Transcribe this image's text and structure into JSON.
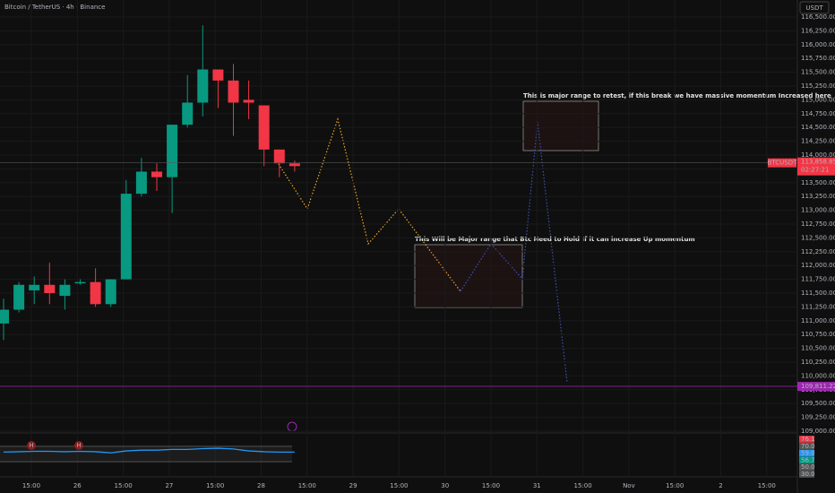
{
  "chart_data": {
    "type": "candlestick",
    "title": "Bitcoin / TetherUS · 4h · Binance",
    "currency": "USDT",
    "colors": {
      "up": "#089981",
      "down": "#f23645"
    },
    "ylim": [
      109000,
      116500
    ],
    "yticks": [
      {
        "value": 109000,
        "label": "109,000.00"
      },
      {
        "value": 109250,
        "label": "109,250.00"
      },
      {
        "value": 109500,
        "label": "109,500.00"
      },
      {
        "value": 109750,
        "label": "109,750.00"
      },
      {
        "value": 110000,
        "label": "110,000.00"
      },
      {
        "value": 110250,
        "label": "110,250.00"
      },
      {
        "value": 110500,
        "label": "110,500.00"
      },
      {
        "value": 110750,
        "label": "110,750.00"
      },
      {
        "value": 111000,
        "label": "111,000.00"
      },
      {
        "value": 111250,
        "label": "111,250.00"
      },
      {
        "value": 111500,
        "label": "111,500.00"
      },
      {
        "value": 111750,
        "label": "111,750.00"
      },
      {
        "value": 112000,
        "label": "112,000.00"
      },
      {
        "value": 112250,
        "label": "112,250.00"
      },
      {
        "value": 112500,
        "label": "112,500.00"
      },
      {
        "value": 112750,
        "label": "112,750.00"
      },
      {
        "value": 113000,
        "label": "113,000.00"
      },
      {
        "value": 113250,
        "label": "113,250.00"
      },
      {
        "value": 113500,
        "label": "113,500.00"
      },
      {
        "value": 113750,
        "label": "113,750.00"
      },
      {
        "value": 114000,
        "label": "114,000.00"
      },
      {
        "value": 114250,
        "label": "114,250.00"
      },
      {
        "value": 114500,
        "label": "114,500.00"
      },
      {
        "value": 114750,
        "label": "114,750.00"
      },
      {
        "value": 115000,
        "label": "115,000.00"
      },
      {
        "value": 115250,
        "label": "115,250.00"
      },
      {
        "value": 115500,
        "label": "115,500.00"
      },
      {
        "value": 115750,
        "label": "115,750.00"
      },
      {
        "value": 116000,
        "label": "116,000.00"
      },
      {
        "value": 116250,
        "label": "116,250.00"
      },
      {
        "value": 116500,
        "label": "116,500.00"
      }
    ],
    "time_labels": [
      "15:00",
      "26",
      "15:00",
      "27",
      "15:00",
      "28",
      "15:00",
      "29",
      "15:00",
      "30",
      "15:00",
      "31",
      "15:00",
      "Nov",
      "15:00",
      "2",
      "15:00"
    ],
    "open": [
      110950,
      111200,
      111550,
      111650,
      111450,
      111700,
      111700,
      111300,
      111750,
      113300,
      113700,
      113600,
      114550,
      114950,
      115550,
      115350,
      115000,
      114900,
      114100,
      113850
    ],
    "high": [
      111400,
      111700,
      111800,
      112050,
      111750,
      111750,
      111950,
      111750,
      113550,
      113950,
      113850,
      114550,
      115450,
      116350,
      115550,
      115650,
      115350,
      114900,
      114100,
      113900
    ],
    "low": [
      110650,
      111150,
      111300,
      111300,
      111200,
      111650,
      111250,
      111250,
      111750,
      113250,
      113350,
      112950,
      114500,
      114700,
      114850,
      114350,
      114650,
      113800,
      113600,
      113700
    ],
    "close": [
      111200,
      111650,
      111650,
      111500,
      111650,
      111700,
      111300,
      111750,
      113300,
      113700,
      113600,
      114550,
      114950,
      115550,
      115350,
      114950,
      114950,
      114100,
      113850,
      113800
    ],
    "symbol": "BTCUSDT",
    "last_price": {
      "value": 113858.85,
      "label": "113,858.85"
    },
    "countdown": "02:27:21",
    "level": {
      "value": 109811.22,
      "label": "109,811.22",
      "color": "#9c27b0"
    },
    "annotations": [
      "This is major range to retest, if this break we have massive momentum Increased here",
      "This Will be Major range that Btc Need to Hold If it can increase Up momentum"
    ],
    "rsi": {
      "ylim": [
        0,
        100
      ],
      "bands": [
        70,
        30
      ],
      "color": "#2196f3",
      "values": [
        55,
        56,
        57,
        57,
        56,
        57,
        56,
        53,
        58,
        60,
        60,
        62,
        62,
        64,
        65,
        63,
        58,
        56,
        55,
        55
      ],
      "markers": [
        "H",
        "H"
      ],
      "axis_labels": [
        "76.1",
        "70.0",
        "59.0",
        "56.7",
        "50.0",
        "30.0"
      ]
    }
  }
}
